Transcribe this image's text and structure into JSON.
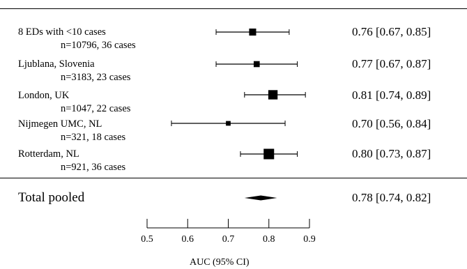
{
  "chart_data": {
    "type": "forest",
    "xlabel": "AUC (95% CI)",
    "xlim": [
      0.5,
      0.9
    ],
    "xticks": [
      "0.5",
      "0.6",
      "0.7",
      "0.8",
      "0.9"
    ],
    "studies": [
      {
        "label": "8 EDs with <10 cases",
        "subtitle": "n=10796, 36 cases",
        "estimate": 0.76,
        "lower": 0.67,
        "upper": 0.85,
        "text": "0.76 [0.67, 0.85]",
        "weight": 0.55
      },
      {
        "label": "Ljublana, Slovenia",
        "subtitle": "n=3183, 23 cases",
        "estimate": 0.77,
        "lower": 0.67,
        "upper": 0.87,
        "text": "0.77 [0.67, 0.87]",
        "weight": 0.42
      },
      {
        "label": "London, UK",
        "subtitle": "n=1047, 22 cases",
        "estimate": 0.81,
        "lower": 0.74,
        "upper": 0.89,
        "text": "0.81 [0.74, 0.89]",
        "weight": 0.85
      },
      {
        "label": "Nijmegen UMC, NL",
        "subtitle": "n=321, 18 cases",
        "estimate": 0.7,
        "lower": 0.56,
        "upper": 0.84,
        "text": "0.70 [0.56, 0.84]",
        "weight": 0.25
      },
      {
        "label": "Rotterdam, NL",
        "subtitle": "n=921, 36 cases",
        "estimate": 0.8,
        "lower": 0.73,
        "upper": 0.87,
        "text": "0.80 [0.73, 0.87]",
        "weight": 1.0
      }
    ],
    "pooled": {
      "label": "Total pooled",
      "estimate": 0.78,
      "lower": 0.74,
      "upper": 0.82,
      "text": "0.78 [0.74, 0.82]"
    }
  }
}
